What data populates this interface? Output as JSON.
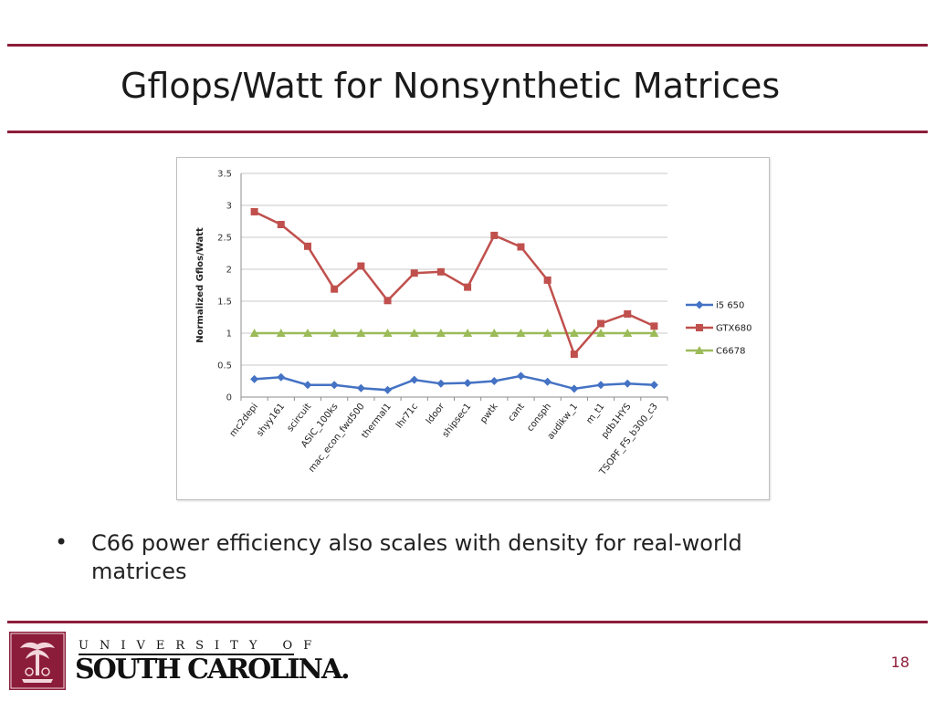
{
  "slide": {
    "title": "Gflops/Watt for Nonsynthetic Matrices",
    "bullet": "C66 power efficiency also scales with density for real-world matrices",
    "page_number": "18",
    "logo": {
      "line1": "UNIVERSITY OF",
      "line2": "SOUTH CAROLINA."
    },
    "colors": {
      "accent": "#8c1d3a"
    }
  },
  "chart_data": {
    "type": "line",
    "title": "",
    "xlabel": "",
    "ylabel": "Normalized Gflos/Watt",
    "ylim": [
      0,
      3.5
    ],
    "yticks": [
      0,
      0.5,
      1,
      1.5,
      2,
      2.5,
      3,
      3.5
    ],
    "grid": true,
    "legend_position": "right",
    "categories": [
      "mc2depi",
      "shyy161",
      "scircuit",
      "ASIC_100ks",
      "mac_econ_fwd500",
      "thermal1",
      "lhr71c",
      "ldoor",
      "shipsec1",
      "pwtk",
      "cant",
      "consph",
      "audikw_1",
      "m_t1",
      "pdb1HYS",
      "TSOPF_FS_b300_c3"
    ],
    "series": [
      {
        "name": "i5 650",
        "color": "#4472c4",
        "marker": "diamond",
        "values": [
          0.28,
          0.31,
          0.19,
          0.19,
          0.14,
          0.11,
          0.27,
          0.21,
          0.22,
          0.25,
          0.33,
          0.24,
          0.13,
          0.19,
          0.21,
          0.19
        ]
      },
      {
        "name": "GTX680",
        "color": "#c0504d",
        "marker": "square",
        "values": [
          2.9,
          2.7,
          2.36,
          1.69,
          2.05,
          1.51,
          1.94,
          1.96,
          1.72,
          2.53,
          2.35,
          1.83,
          0.67,
          1.15,
          1.3,
          1.11
        ]
      },
      {
        "name": "C6678",
        "color": "#9bbb59",
        "marker": "triangle",
        "values": [
          1,
          1,
          1,
          1,
          1,
          1,
          1,
          1,
          1,
          1,
          1,
          1,
          1,
          1,
          1,
          1
        ]
      }
    ]
  }
}
